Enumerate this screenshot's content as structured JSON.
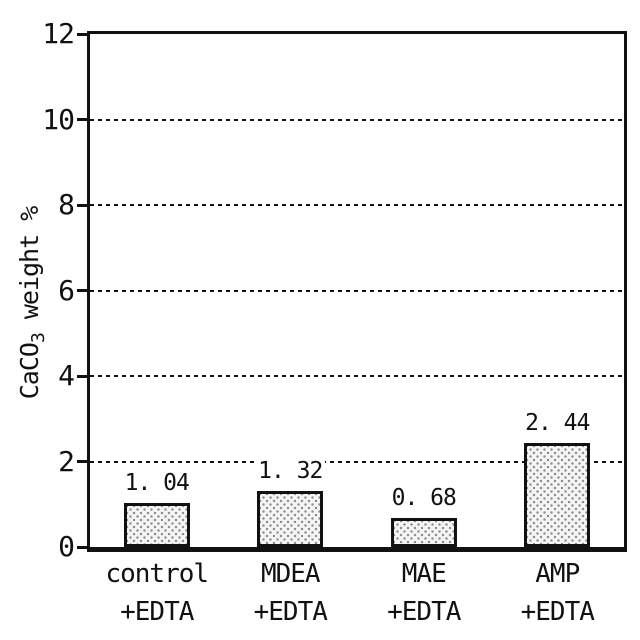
{
  "figure": {
    "background": "#ffffff",
    "axis_color": "#111111"
  },
  "chart_data": {
    "type": "bar",
    "title": "",
    "xlabel": "",
    "ylabel": "CaCO3 weight %",
    "ylabel_parts": {
      "prefix": "CaCO",
      "subscript": "3",
      "suffix": " weight %"
    },
    "ylim": [
      0,
      12
    ],
    "yticks": [
      0,
      2,
      4,
      6,
      8,
      10,
      12
    ],
    "gridlines": [
      2,
      4,
      6,
      8,
      10
    ],
    "grid_style": "dotted",
    "legend": "none",
    "categories": [
      [
        "control",
        "+EDTA"
      ],
      [
        "MDEA",
        "+EDTA"
      ],
      [
        "MAE",
        "+EDTA"
      ],
      [
        "AMP",
        "+EDTA"
      ]
    ],
    "values": [
      1.04,
      1.32,
      0.68,
      2.44
    ],
    "value_labels": [
      "1. 04",
      "1. 32",
      "0. 68",
      "2. 44"
    ],
    "bar_style": {
      "fill": "stipple-halftone-dots",
      "background": "#f5f5f5",
      "dot_color": "#8f8f8f",
      "outline": "#111111"
    }
  }
}
